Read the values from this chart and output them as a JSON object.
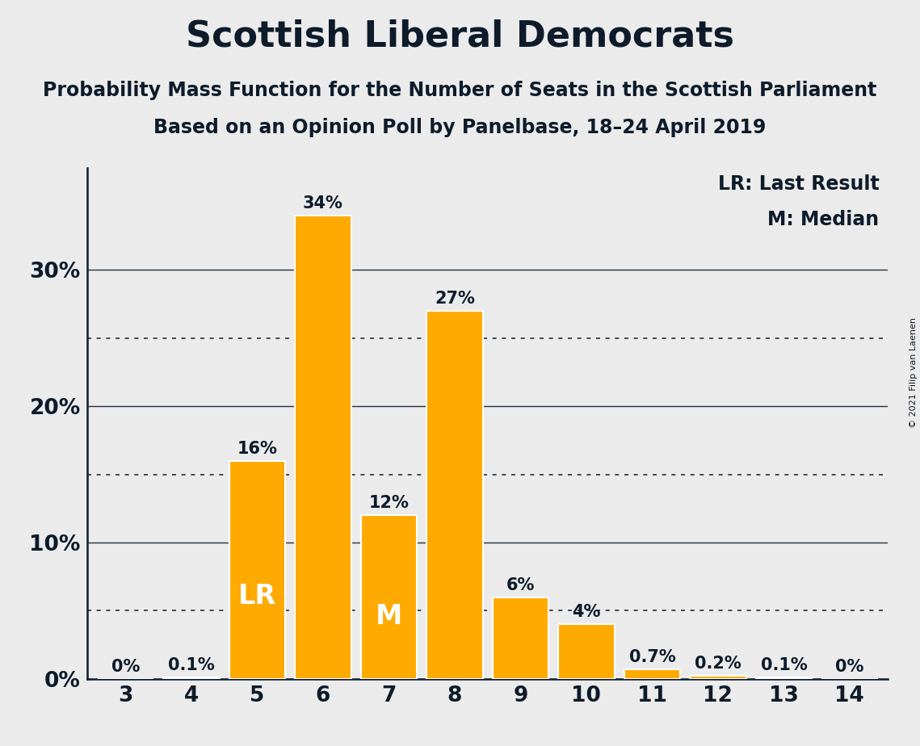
{
  "title": "Scottish Liberal Democrats",
  "subtitle1": "Probability Mass Function for the Number of Seats in the Scottish Parliament",
  "subtitle2": "Based on an Opinion Poll by Panelbase, 18–24 April 2019",
  "copyright": "© 2021 Filip van Laenen",
  "seats": [
    3,
    4,
    5,
    6,
    7,
    8,
    9,
    10,
    11,
    12,
    13,
    14
  ],
  "probabilities": [
    0.0,
    0.001,
    0.16,
    0.34,
    0.12,
    0.27,
    0.06,
    0.04,
    0.007,
    0.002,
    0.001,
    0.0
  ],
  "labels": [
    "0%",
    "0.1%",
    "16%",
    "34%",
    "12%",
    "27%",
    "6%",
    "4%",
    "0.7%",
    "0.2%",
    "0.1%",
    "0%"
  ],
  "bar_color": "#FFAA00",
  "background_color": "#EBEBEB",
  "text_color": "#0D1B2A",
  "bar_edge_color": "#FFFFFF",
  "lr_seat": 5,
  "median_seat": 7,
  "legend_text": [
    "LR: Last Result",
    "M: Median"
  ],
  "ylim": [
    0,
    0.375
  ],
  "solid_yticks": [
    0.0,
    0.1,
    0.2,
    0.3
  ],
  "dotted_yticks": [
    0.05,
    0.15,
    0.25
  ],
  "title_fontsize": 32,
  "subtitle_fontsize": 17,
  "label_fontsize": 15,
  "axis_fontsize": 19,
  "legend_fontsize": 17,
  "lr_label_fontsize": 24,
  "m_label_fontsize": 24
}
